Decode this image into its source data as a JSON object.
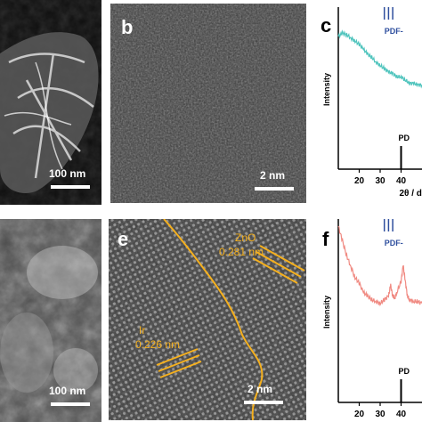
{
  "panels": {
    "a": {
      "scale_label": "100 nm"
    },
    "b": {
      "letter": "b",
      "scale_label": "2 nm"
    },
    "c": {
      "letter": "c"
    },
    "d": {
      "scale_label": "100 nm"
    },
    "e": {
      "letter": "e",
      "scale_label": "2 nm",
      "annotations": {
        "zno_name": "ZnO",
        "zno_spacing": "0.281 nm",
        "ir_name": "Ir",
        "ir_spacing": "0.226 nm"
      }
    },
    "f": {
      "letter": "f"
    }
  },
  "colors": {
    "c_curve": "#4fc4bd",
    "f_curve": "#f08a82",
    "pdf_label": "#2f4f9e",
    "annotation": "#f5b01e"
  },
  "chart_data": [
    {
      "panel": "c",
      "type": "line",
      "ylabel": "Intensity",
      "xlabel": "2θ / d",
      "xlim": [
        10,
        50
      ],
      "ylim": [
        0,
        1
      ],
      "x_ticks": [
        20,
        30,
        40
      ],
      "reference_labels": [
        "PDF-",
        "PD"
      ],
      "reference_ticks_top": [
        32,
        34,
        36
      ],
      "reference_ticks_bottom": [
        40
      ],
      "series": [
        {
          "x": [
            10,
            12,
            14,
            16,
            18,
            20,
            22,
            24,
            26,
            28,
            30,
            32,
            34,
            36,
            38,
            40,
            42,
            44,
            46,
            48,
            50
          ],
          "y": [
            0.82,
            0.84,
            0.83,
            0.81,
            0.79,
            0.77,
            0.74,
            0.71,
            0.69,
            0.66,
            0.64,
            0.62,
            0.6,
            0.59,
            0.57,
            0.57,
            0.55,
            0.53,
            0.53,
            0.52,
            0.52
          ]
        }
      ]
    },
    {
      "panel": "f",
      "type": "line",
      "ylabel": "Intensity",
      "xlabel": "",
      "xlim": [
        10,
        50
      ],
      "ylim": [
        0,
        1
      ],
      "x_ticks": [
        20,
        30,
        40
      ],
      "reference_labels": [
        "PDF-",
        "PD"
      ],
      "reference_ticks_top": [
        32,
        34,
        36
      ],
      "reference_ticks_bottom": [
        40
      ],
      "series": [
        {
          "x": [
            10,
            12,
            14,
            16,
            18,
            20,
            22,
            24,
            26,
            28,
            30,
            32,
            34,
            35,
            36,
            37,
            38,
            40,
            41,
            42,
            43,
            44,
            46,
            48,
            50
          ],
          "y": [
            0.96,
            0.88,
            0.8,
            0.74,
            0.68,
            0.65,
            0.6,
            0.58,
            0.56,
            0.55,
            0.54,
            0.56,
            0.58,
            0.64,
            0.58,
            0.57,
            0.6,
            0.66,
            0.75,
            0.66,
            0.58,
            0.56,
            0.55,
            0.55,
            0.54
          ]
        }
      ]
    }
  ]
}
